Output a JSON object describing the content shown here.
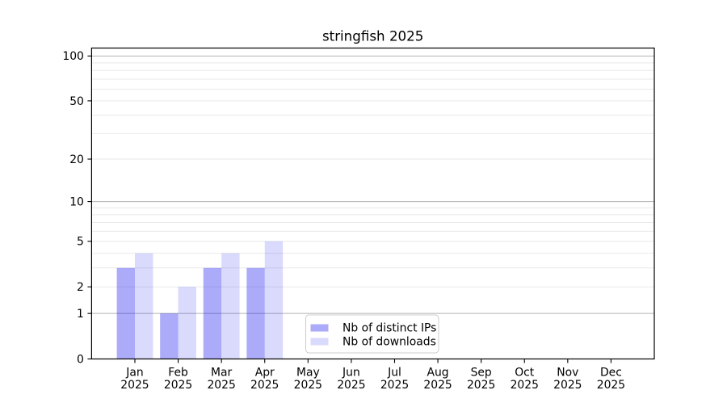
{
  "chart_data": {
    "type": "bar",
    "title": "stringfish 2025",
    "categories": [
      "Jan",
      "Feb",
      "Mar",
      "Apr",
      "May",
      "Jun",
      "Jul",
      "Aug",
      "Sep",
      "Oct",
      "Nov",
      "Dec"
    ],
    "x_year": "2025",
    "series": [
      {
        "name": "Nb of distinct IPs",
        "color": "rgba(0,0,238,0.33)",
        "values": [
          3,
          1,
          3,
          3,
          0,
          0,
          0,
          0,
          0,
          0,
          0,
          0
        ]
      },
      {
        "name": "Nb of downloads",
        "color": "rgba(0,0,238,0.145)",
        "values": [
          4,
          2,
          4,
          5,
          0,
          0,
          0,
          0,
          0,
          0,
          0,
          0
        ]
      }
    ],
    "yaxis": {
      "ticks": [
        0,
        1,
        2,
        5,
        10,
        20,
        50,
        100
      ],
      "scale": "log1p",
      "ylim": [
        0,
        113
      ],
      "grid": true
    },
    "legend": {
      "position": "lower center"
    }
  }
}
